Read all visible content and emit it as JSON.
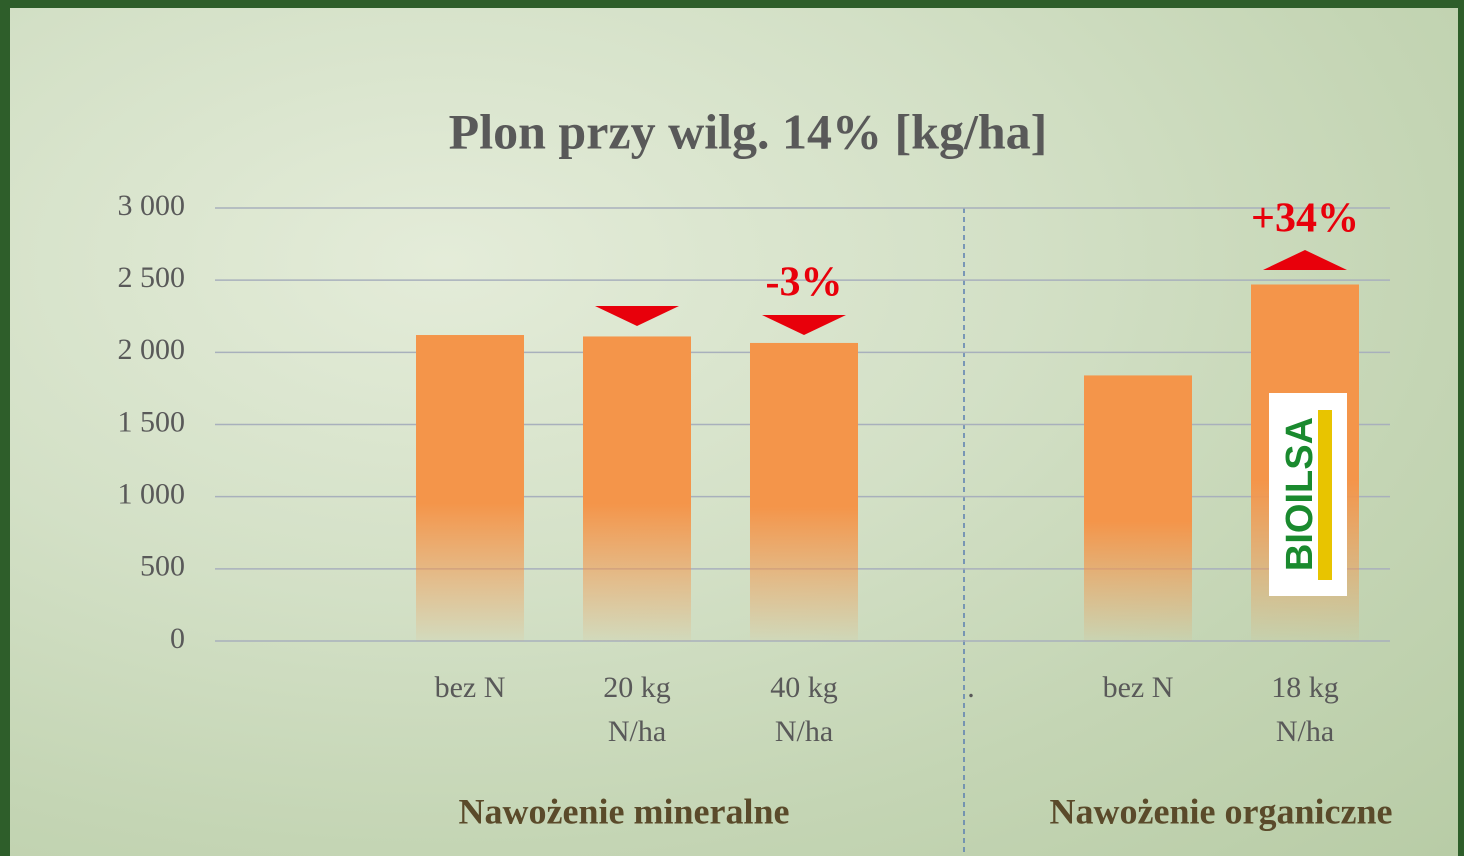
{
  "chart_data": {
    "type": "bar",
    "title": "Plon przy wilg. 14% [kg/ha]",
    "categories": [
      "bez N",
      "20 kg N/ha",
      "40 kg N/ha",
      ".",
      "bez N",
      "18 kg N/ha"
    ],
    "values": [
      2120,
      2110,
      2065,
      null,
      1840,
      2470
    ],
    "color": "#f4954a",
    "ylim": [
      0,
      3000
    ],
    "yticks": [
      0,
      500,
      {
        "value": 1000,
        "label": "1 000"
      },
      {
        "value": 1500,
        "label": "1 500"
      },
      {
        "value": 2000,
        "label": "2 000"
      },
      {
        "value": 2500,
        "label": "2 500"
      },
      {
        "value": 3000,
        "label": "3 000"
      }
    ],
    "grid": true,
    "annotations": [
      "-3%",
      "+34%"
    ],
    "groups": [
      "Nawożenie mineralne",
      "Nawożenie organiczne"
    ],
    "logo_text": "BIOILSA"
  }
}
